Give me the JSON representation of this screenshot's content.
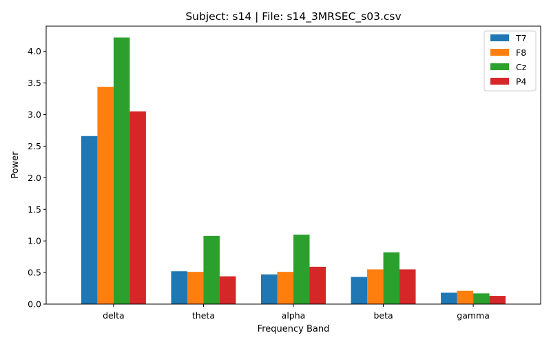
{
  "chart_data": {
    "type": "bar",
    "title": "Subject: s14 | File: s14_3MRSEC_s03.csv",
    "xlabel": "Frequency Band",
    "ylabel": "Power",
    "categories": [
      "delta",
      "theta",
      "alpha",
      "beta",
      "gamma"
    ],
    "ylim": [
      0,
      4.4
    ],
    "yticks": [
      "0.0",
      "0.5",
      "1.0",
      "1.5",
      "2.0",
      "2.5",
      "3.0",
      "3.5",
      "4.0"
    ],
    "grid": false,
    "legend_position": "top-right",
    "series": [
      {
        "name": "T7",
        "color": "#1f77b4",
        "values": [
          2.66,
          0.52,
          0.47,
          0.43,
          0.18
        ]
      },
      {
        "name": "F8",
        "color": "#ff7f0e",
        "values": [
          3.44,
          0.51,
          0.51,
          0.55,
          0.21
        ]
      },
      {
        "name": "Cz",
        "color": "#2ca02c",
        "values": [
          4.22,
          1.08,
          1.1,
          0.82,
          0.17
        ]
      },
      {
        "name": "P4",
        "color": "#d62728",
        "values": [
          3.05,
          0.44,
          0.59,
          0.55,
          0.13
        ]
      }
    ]
  }
}
